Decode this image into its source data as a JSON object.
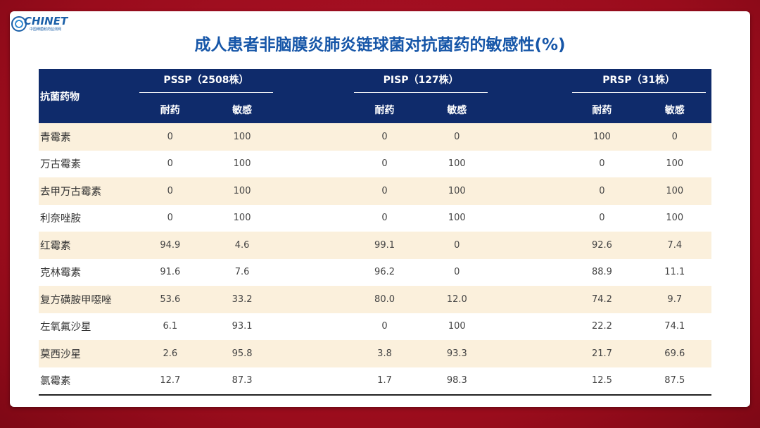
{
  "logo": {
    "text": "CHINET",
    "subtext": "中国细菌耐药监测网"
  },
  "title": "成人患者非脑膜炎肺炎链球菌对抗菌药的敏感性(%)",
  "table": {
    "drug_header": "抗菌药物",
    "groups": [
      "PSSP（2508株）",
      "PISP（127株）",
      "PRSP（31株）"
    ],
    "subheaders": [
      "耐药",
      "敏感",
      "耐药",
      "敏感",
      "耐药",
      "敏感"
    ],
    "rows": [
      {
        "drug": "青霉素",
        "v": [
          "0",
          "100",
          "0",
          "0",
          "100",
          "0"
        ]
      },
      {
        "drug": "万古霉素",
        "v": [
          "0",
          "100",
          "0",
          "100",
          "0",
          "100"
        ]
      },
      {
        "drug": "去甲万古霉素",
        "v": [
          "0",
          "100",
          "0",
          "100",
          "0",
          "100"
        ]
      },
      {
        "drug": "利奈唑胺",
        "v": [
          "0",
          "100",
          "0",
          "100",
          "0",
          "100"
        ]
      },
      {
        "drug": "红霉素",
        "v": [
          "94.9",
          "4.6",
          "99.1",
          "0",
          "92.6",
          "7.4"
        ]
      },
      {
        "drug": "克林霉素",
        "v": [
          "91.6",
          "7.6",
          "96.2",
          "0",
          "88.9",
          "11.1"
        ]
      },
      {
        "drug": "复方磺胺甲噁唑",
        "v": [
          "53.6",
          "33.2",
          "80.0",
          "12.0",
          "74.2",
          "9.7"
        ]
      },
      {
        "drug": "左氧氟沙星",
        "v": [
          "6.1",
          "93.1",
          "0",
          "100",
          "22.2",
          "74.1"
        ]
      },
      {
        "drug": "莫西沙星",
        "v": [
          "2.6",
          "95.8",
          "3.8",
          "93.3",
          "21.7",
          "69.6"
        ]
      },
      {
        "drug": "氯霉素",
        "v": [
          "12.7",
          "87.3",
          "1.7",
          "98.3",
          "12.5",
          "87.5"
        ]
      }
    ]
  },
  "colors": {
    "header_bg": "#0f2b6b",
    "row_alt": "#fbf0dc",
    "title": "#1656a8",
    "frame": "#a5101e"
  }
}
